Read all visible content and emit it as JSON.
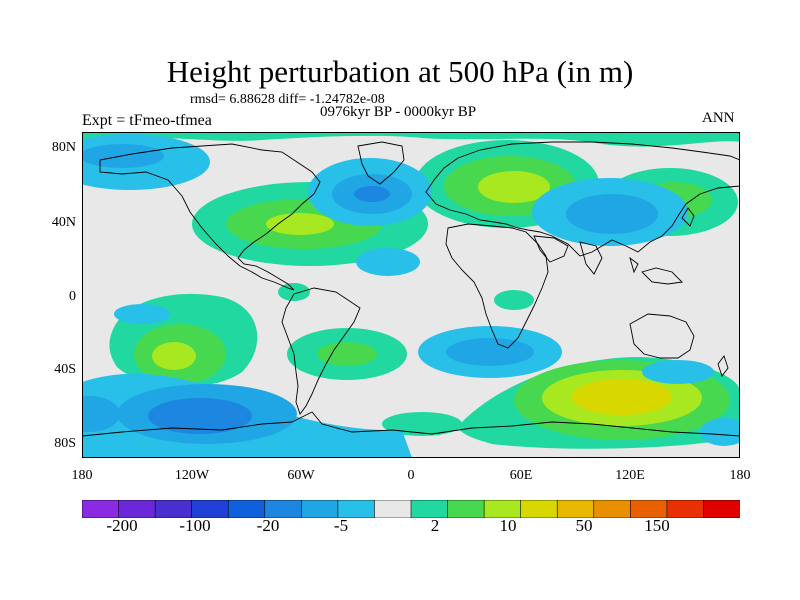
{
  "title": "Height perturbation at 500 hPa (in m)",
  "stats": "rmsd= 6.88628 diff= -1.24782e-08",
  "expt": "Expt = tFmeo-tfmea",
  "period": "0976kyr BP - 0000kyr BP",
  "season": "ANN",
  "lat_labels": [
    "80N",
    "40N",
    "0",
    "40S",
    "80S"
  ],
  "lon_labels": [
    "180",
    "120W",
    "60W",
    "0",
    "60E",
    "120E",
    "180"
  ],
  "colorbar": {
    "colors": [
      "#8a2be2",
      "#6a28d8",
      "#4a2fd0",
      "#2040d8",
      "#1060dc",
      "#1c86e0",
      "#20a6e4",
      "#28c0e8",
      "#e8e8e8",
      "#20d8a0",
      "#48d850",
      "#a8e820",
      "#d8d800",
      "#e8b800",
      "#e89000",
      "#e86000",
      "#e83000",
      "#e00000"
    ],
    "labels": [
      "-200",
      "-100",
      "-20",
      "-5",
      "2",
      "10",
      "50",
      "150"
    ]
  },
  "map_data": {
    "type": "filled-contour",
    "projection": "cylindrical-equidistant",
    "xlim": [
      -180,
      180
    ],
    "ylim": [
      -90,
      90
    ]
  }
}
